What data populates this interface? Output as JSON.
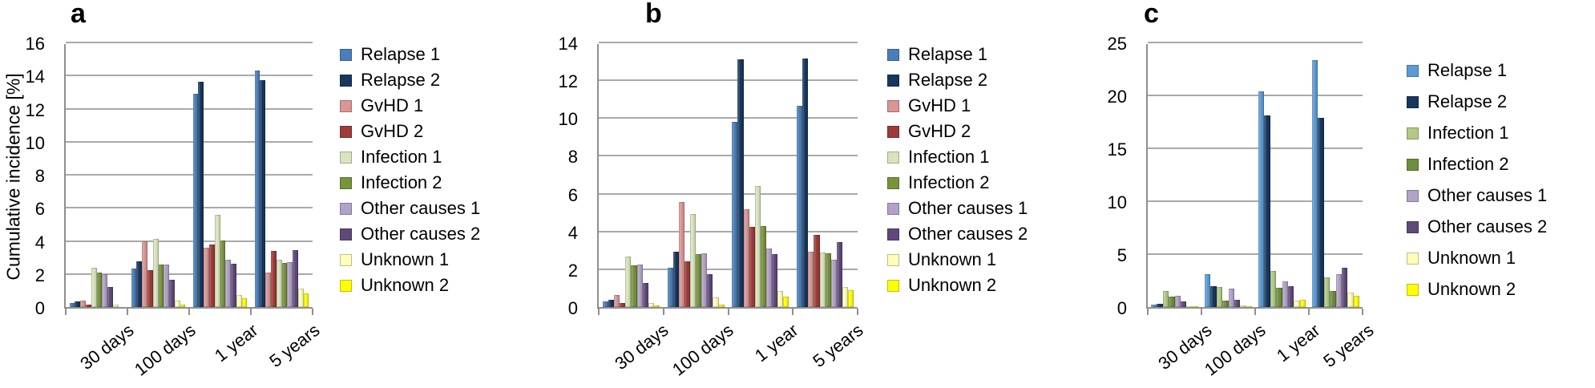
{
  "figure": {
    "description": "Three grouped bar charts of cumulative incidence over time",
    "ylabel": "Cumulative incidence [%]"
  },
  "chart_data": [
    {
      "panel_label": "a",
      "type": "bar",
      "ylabel": "Cumulative incidence [%]",
      "ylim": [
        0,
        16
      ],
      "yticks": [
        0,
        2,
        4,
        6,
        8,
        10,
        12,
        14,
        16
      ],
      "grid": true,
      "legend_position": "right",
      "categories": [
        "30 days",
        "100 days",
        "1 year",
        "5 years"
      ],
      "series": [
        {
          "name": "Relapse 1",
          "color": "#4a7ebb",
          "values": [
            0.25,
            2.35,
            13.0,
            14.4
          ]
        },
        {
          "name": "Relapse 2",
          "color": "#17375e",
          "values": [
            0.35,
            2.8,
            13.7,
            13.8
          ]
        },
        {
          "name": "GvHD 1",
          "color": "#d99694",
          "values": [
            0.4,
            4.0,
            3.6,
            2.1
          ]
        },
        {
          "name": "GvHD 2",
          "color": "#9e3a38",
          "values": [
            0.15,
            2.25,
            3.8,
            3.4
          ]
        },
        {
          "name": "Infection 1",
          "color": "#d7e4bc",
          "values": [
            2.4,
            4.15,
            5.6,
            2.9
          ]
        },
        {
          "name": "Infection 2",
          "color": "#77933c",
          "values": [
            2.1,
            2.6,
            4.05,
            2.7
          ]
        },
        {
          "name": "Other causes 1",
          "color": "#b2a2c7",
          "values": [
            2.0,
            2.6,
            2.9,
            2.75
          ]
        },
        {
          "name": "Other causes 2",
          "color": "#5f497a",
          "values": [
            1.2,
            1.65,
            2.65,
            3.45
          ]
        },
        {
          "name": "Unknown 1",
          "color": "#ffffb9",
          "values": [
            0.15,
            0.4,
            0.75,
            1.1
          ]
        },
        {
          "name": "Unknown 2",
          "color": "#ffff00",
          "values": [
            0.0,
            0.15,
            0.55,
            0.85
          ]
        }
      ]
    },
    {
      "panel_label": "b",
      "type": "bar",
      "ylabel": "",
      "ylim": [
        0,
        14
      ],
      "yticks": [
        0,
        2,
        4,
        6,
        8,
        10,
        12,
        14
      ],
      "grid": true,
      "legend_position": "right",
      "categories": [
        "30 days",
        "100 days",
        "1 year",
        "5 years"
      ],
      "series": [
        {
          "name": "Relapse 1",
          "color": "#4a7ebb",
          "values": [
            0.3,
            2.1,
            9.85,
            10.7
          ]
        },
        {
          "name": "Relapse 2",
          "color": "#17375e",
          "values": [
            0.4,
            2.95,
            13.2,
            13.25
          ]
        },
        {
          "name": "GvHD 1",
          "color": "#d99694",
          "values": [
            0.65,
            5.6,
            5.2,
            2.95
          ]
        },
        {
          "name": "GvHD 2",
          "color": "#9e3a38",
          "values": [
            0.2,
            2.45,
            4.25,
            3.85
          ]
        },
        {
          "name": "Infection 1",
          "color": "#d7e4bc",
          "values": [
            2.7,
            4.95,
            6.45,
            2.9
          ]
        },
        {
          "name": "Infection 2",
          "color": "#77933c",
          "values": [
            2.2,
            2.8,
            4.3,
            2.85
          ]
        },
        {
          "name": "Other causes 1",
          "color": "#b2a2c7",
          "values": [
            2.25,
            2.85,
            3.1,
            2.5
          ]
        },
        {
          "name": "Other causes 2",
          "color": "#5f497a",
          "values": [
            1.3,
            1.75,
            2.8,
            3.45
          ]
        },
        {
          "name": "Unknown 1",
          "color": "#ffffb9",
          "values": [
            0.2,
            0.5,
            0.85,
            1.05
          ]
        },
        {
          "name": "Unknown 2",
          "color": "#ffff00",
          "values": [
            0.1,
            0.15,
            0.55,
            0.9
          ]
        }
      ]
    },
    {
      "panel_label": "c",
      "type": "bar",
      "ylabel": "",
      "ylim": [
        0,
        25
      ],
      "yticks": [
        0,
        5,
        10,
        15,
        20,
        25
      ],
      "grid": true,
      "legend_position": "right",
      "categories": [
        "30 days",
        "100 days",
        "1 year",
        "5 years"
      ],
      "series": [
        {
          "name": "Relapse 1",
          "color": "#5b9bd5",
          "values": [
            0.25,
            3.1,
            20.5,
            23.5
          ]
        },
        {
          "name": "Relapse 2",
          "color": "#17375e",
          "values": [
            0.3,
            2.0,
            18.2,
            18.0
          ]
        },
        {
          "name": "Infection 1",
          "color": "#b2ca85",
          "values": [
            1.5,
            1.9,
            3.45,
            2.8
          ]
        },
        {
          "name": "Infection 2",
          "color": "#6e8f3c",
          "values": [
            1.0,
            0.6,
            1.85,
            1.5
          ]
        },
        {
          "name": "Other causes 1",
          "color": "#b2a2c7",
          "values": [
            1.1,
            1.75,
            2.45,
            3.1
          ]
        },
        {
          "name": "Other causes 2",
          "color": "#5f497a",
          "values": [
            0.5,
            0.65,
            2.0,
            3.7
          ]
        },
        {
          "name": "Unknown 1",
          "color": "#ffffb9",
          "values": [
            0.1,
            0.15,
            0.6,
            1.4
          ]
        },
        {
          "name": "Unknown 2",
          "color": "#ffff00",
          "values": [
            0.05,
            0.05,
            0.65,
            1.1
          ]
        }
      ]
    }
  ]
}
